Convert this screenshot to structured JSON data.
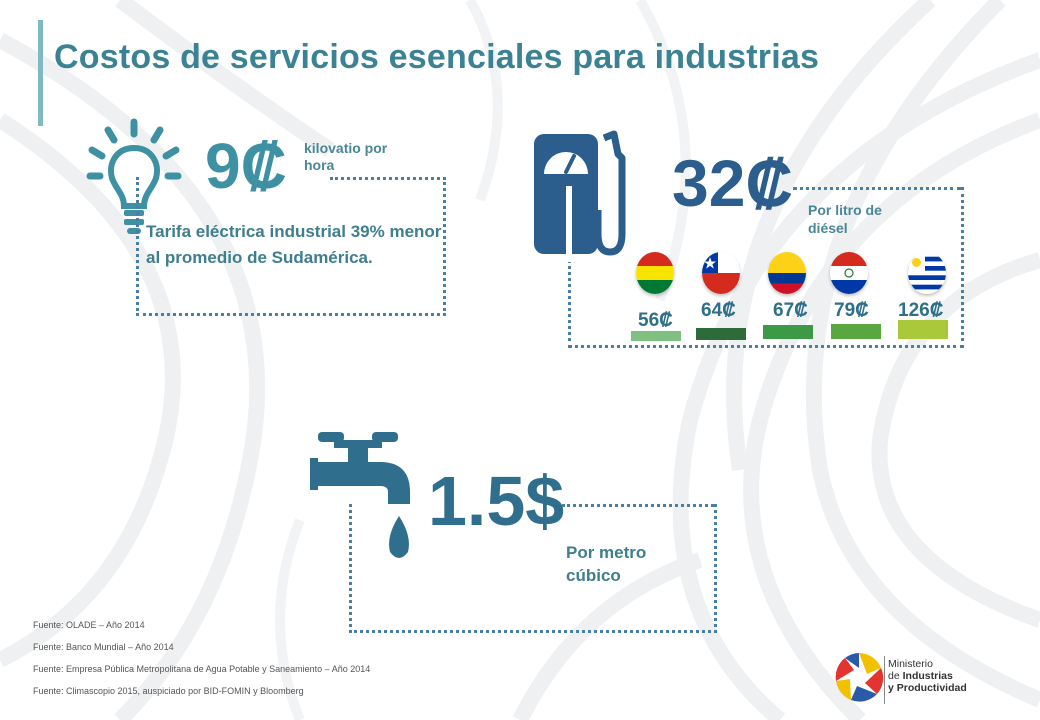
{
  "title": "Costos de servicios esenciales para industrias",
  "electricity": {
    "value": "9₡",
    "unit": "kilovatio por hora",
    "description": "Tarifa eléctrica industrial 39% menor al promedio de Sudamérica."
  },
  "diesel": {
    "value": "32₡",
    "unit": "Por litro de diésel",
    "countries": [
      {
        "flag": "bolivia-flag",
        "price": "56₡",
        "bar_color": "#7fbf7f"
      },
      {
        "flag": "chile-flag",
        "price": "64₡",
        "bar_color": "#2e6b3a"
      },
      {
        "flag": "colombia-flag",
        "price": "67₡",
        "bar_color": "#3c9a47"
      },
      {
        "flag": "paraguay-flag",
        "price": "79₡",
        "bar_color": "#5aa63f"
      },
      {
        "flag": "uruguay-flag",
        "price": "126₡",
        "bar_color": "#a9c93b"
      }
    ]
  },
  "water": {
    "value": "1.5$",
    "unit": "Por metro cúbico"
  },
  "sources": [
    "Fuente:  OLADE – Año 2014",
    "Fuente:  Banco Mundial – Año 2014",
    "Fuente:  Empresa Pública Metropolitana de Agua Potable y Saneamiento – Año 2014",
    "Fuente: Climascopio 2015, auspiciado por BID-FOMIN y Bloomberg"
  ],
  "logo": {
    "line1": "Ministerio",
    "line2_prefix": "de ",
    "line2_bold": "Industrias",
    "line3": "y Productividad"
  },
  "colors": {
    "title": "#3a8294",
    "accent": "#7fb9c4",
    "icon_teal": "#3e91a3",
    "icon_navy": "#2b5e8c"
  }
}
